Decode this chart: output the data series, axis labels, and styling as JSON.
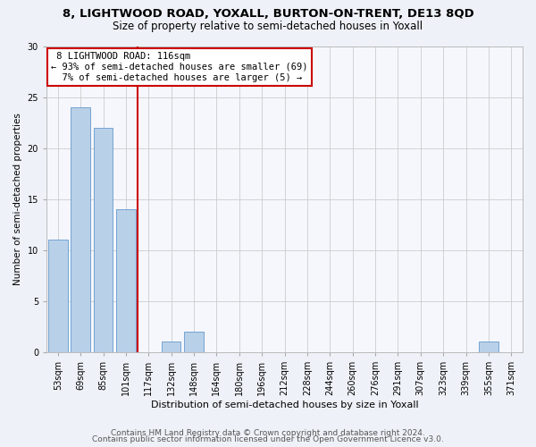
{
  "title": "8, LIGHTWOOD ROAD, YOXALL, BURTON-ON-TRENT, DE13 8QD",
  "subtitle": "Size of property relative to semi-detached houses in Yoxall",
  "xlabel": "Distribution of semi-detached houses by size in Yoxall",
  "ylabel": "Number of semi-detached properties",
  "categories": [
    "53sqm",
    "69sqm",
    "85sqm",
    "101sqm",
    "117sqm",
    "132sqm",
    "148sqm",
    "164sqm",
    "180sqm",
    "196sqm",
    "212sqm",
    "228sqm",
    "244sqm",
    "260sqm",
    "276sqm",
    "291sqm",
    "307sqm",
    "323sqm",
    "339sqm",
    "355sqm",
    "371sqm"
  ],
  "values": [
    11,
    24,
    22,
    14,
    0,
    1,
    2,
    0,
    0,
    0,
    0,
    0,
    0,
    0,
    0,
    0,
    0,
    0,
    0,
    1,
    0
  ],
  "bar_color": "#b8d0e8",
  "bar_edge_color": "#6699cc",
  "vline_index": 3.5,
  "vline_color": "#cc0000",
  "annotation_box_color": "#cc0000",
  "property_label": "8 LIGHTWOOD ROAD: 116sqm",
  "pct_smaller": 93,
  "n_smaller": 69,
  "pct_larger": 7,
  "n_larger": 5,
  "ylim": [
    0,
    30
  ],
  "yticks": [
    0,
    5,
    10,
    15,
    20,
    25,
    30
  ],
  "title_fontsize": 9.5,
  "subtitle_fontsize": 8.5,
  "xlabel_fontsize": 8,
  "ylabel_fontsize": 7.5,
  "tick_fontsize": 7,
  "annot_fontsize": 7.5,
  "footer_fontsize": 6.5,
  "footer_line1": "Contains HM Land Registry data © Crown copyright and database right 2024.",
  "footer_line2": "Contains public sector information licensed under the Open Government Licence v3.0.",
  "bg_color": "#eef2f8",
  "plot_bg_color": "#f5f7fd"
}
